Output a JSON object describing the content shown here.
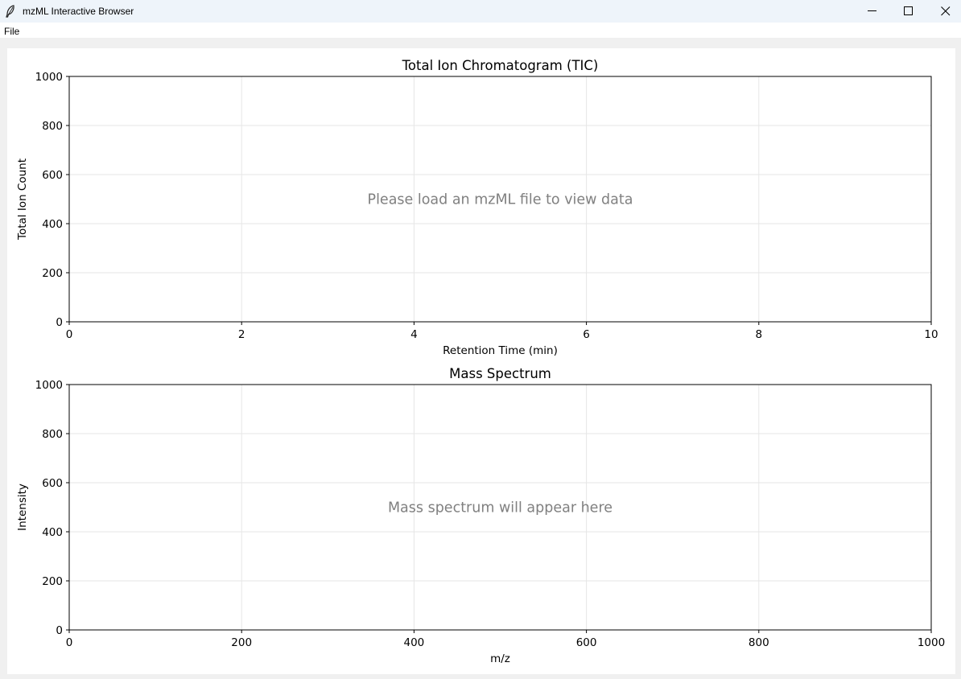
{
  "window": {
    "title": "mzML Interactive Browser"
  },
  "menu": {
    "file_label": "File"
  },
  "icons": {
    "app": "feather-icon",
    "minimize": "minimize-icon",
    "maximize": "maximize-icon",
    "close": "close-icon"
  },
  "colors": {
    "placeholder_text": "#808080",
    "grid": "#e6e6e6",
    "axis": "#000000"
  },
  "chart_data": [
    {
      "type": "line",
      "title": "Total Ion Chromatogram (TIC)",
      "xlabel": "Retention Time (min)",
      "ylabel": "Total Ion Count",
      "xlim": [
        0,
        10
      ],
      "ylim": [
        0,
        1000
      ],
      "xticks": [
        0,
        2,
        4,
        6,
        8,
        10
      ],
      "yticks": [
        0,
        200,
        400,
        600,
        800,
        1000
      ],
      "grid": true,
      "series": [],
      "placeholder": "Please load an mzML file to view data"
    },
    {
      "type": "bar",
      "title": "Mass Spectrum",
      "xlabel": "m/z",
      "ylabel": "Intensity",
      "xlim": [
        0,
        1000
      ],
      "ylim": [
        0,
        1000
      ],
      "xticks": [
        0,
        200,
        400,
        600,
        800,
        1000
      ],
      "yticks": [
        0,
        200,
        400,
        600,
        800,
        1000
      ],
      "grid": true,
      "series": [],
      "placeholder": "Mass spectrum will appear here"
    }
  ]
}
